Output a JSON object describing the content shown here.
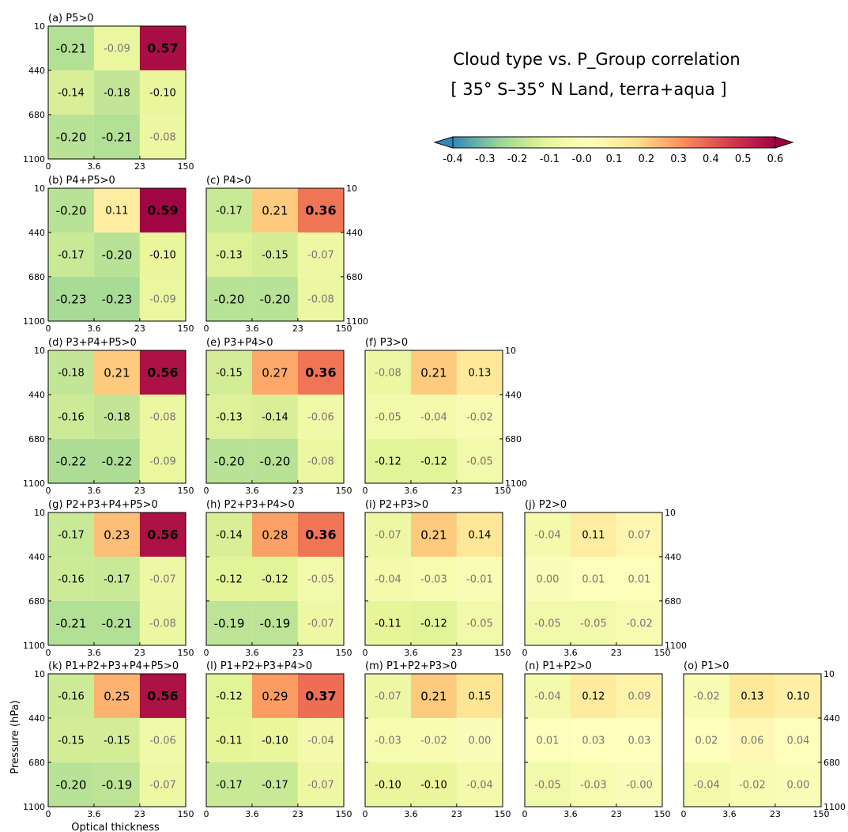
{
  "figure": {
    "title_line1": "Cloud type vs. P_Group correlation",
    "title_line2": "[ 35° S–35° N Land, terra+aqua ]",
    "xlabel": "Optical thickness",
    "ylabel": "Pressure (hPa)"
  },
  "colorbar": {
    "ticks": [
      "-0.4",
      "-0.3",
      "-0.2",
      "-0.1",
      "-0.0",
      "0.1",
      "0.2",
      "0.3",
      "0.4",
      "0.5",
      "0.6"
    ],
    "range": [
      -0.4,
      0.6
    ],
    "extend": "both",
    "colormap": "Spectral_r",
    "stops": [
      "#3288bd",
      "#99d594",
      "#e6f598",
      "#ffffbf",
      "#fee08b",
      "#fc8d59",
      "#d53e4f",
      "#9e0142"
    ]
  },
  "chart_data": {
    "type": "heatmap",
    "x_tick_labels": [
      "0",
      "3.6",
      "23",
      "150"
    ],
    "y_tick_labels": [
      "10",
      "440",
      "680",
      "1100"
    ],
    "x_bins": [
      "0–3.6",
      "3.6–23",
      "23–150"
    ],
    "y_bins": [
      "10–440",
      "440–680",
      "680–1100"
    ],
    "value_range": [
      -0.4,
      0.6
    ],
    "panels": [
      {
        "label": "(a) P5>0",
        "values": [
          [
            -0.21,
            -0.09,
            0.57
          ],
          [
            -0.14,
            -0.18,
            -0.1
          ],
          [
            -0.2,
            -0.21,
            -0.08
          ]
        ],
        "text": [
          [
            "-0.21",
            "-0.09",
            "0.57"
          ],
          [
            "-0.14",
            "-0.18",
            "-0.10"
          ],
          [
            "-0.20",
            "-0.21",
            "-0.08"
          ]
        ]
      },
      {
        "label": "(b) P4+P5>0",
        "values": [
          [
            -0.2,
            0.11,
            0.59
          ],
          [
            -0.17,
            -0.2,
            -0.1
          ],
          [
            -0.23,
            -0.23,
            -0.09
          ]
        ],
        "text": [
          [
            "-0.20",
            "0.11",
            "0.59"
          ],
          [
            "-0.17",
            "-0.20",
            "-0.10"
          ],
          [
            "-0.23",
            "-0.23",
            "-0.09"
          ]
        ]
      },
      {
        "label": "(c) P4>0",
        "values": [
          [
            -0.17,
            0.21,
            0.36
          ],
          [
            -0.13,
            -0.15,
            -0.07
          ],
          [
            -0.2,
            -0.2,
            -0.08
          ]
        ],
        "text": [
          [
            "-0.17",
            "0.21",
            "0.36"
          ],
          [
            "-0.13",
            "-0.15",
            "-0.07"
          ],
          [
            "-0.20",
            "-0.20",
            "-0.08"
          ]
        ]
      },
      {
        "label": "(d) P3+P4+P5>0",
        "values": [
          [
            -0.18,
            0.21,
            0.56
          ],
          [
            -0.16,
            -0.18,
            -0.08
          ],
          [
            -0.22,
            -0.22,
            -0.09
          ]
        ],
        "text": [
          [
            "-0.18",
            "0.21",
            "0.56"
          ],
          [
            "-0.16",
            "-0.18",
            "-0.08"
          ],
          [
            "-0.22",
            "-0.22",
            "-0.09"
          ]
        ]
      },
      {
        "label": "(e) P3+P4>0",
        "values": [
          [
            -0.15,
            0.27,
            0.36
          ],
          [
            -0.13,
            -0.14,
            -0.06
          ],
          [
            -0.2,
            -0.2,
            -0.08
          ]
        ],
        "text": [
          [
            "-0.15",
            "0.27",
            "0.36"
          ],
          [
            "-0.13",
            "-0.14",
            "-0.06"
          ],
          [
            "-0.20",
            "-0.20",
            "-0.08"
          ]
        ]
      },
      {
        "label": "(f) P3>0",
        "values": [
          [
            -0.08,
            0.21,
            0.13
          ],
          [
            -0.05,
            -0.04,
            -0.02
          ],
          [
            -0.12,
            -0.12,
            -0.05
          ]
        ],
        "text": [
          [
            "-0.08",
            "0.21",
            "0.13"
          ],
          [
            "-0.05",
            "-0.04",
            "-0.02"
          ],
          [
            "-0.12",
            "-0.12",
            "-0.05"
          ]
        ]
      },
      {
        "label": "(g) P2+P3+P4+P5>0",
        "values": [
          [
            -0.17,
            0.23,
            0.56
          ],
          [
            -0.16,
            -0.17,
            -0.07
          ],
          [
            -0.21,
            -0.21,
            -0.08
          ]
        ],
        "text": [
          [
            "-0.17",
            "0.23",
            "0.56"
          ],
          [
            "-0.16",
            "-0.17",
            "-0.07"
          ],
          [
            "-0.21",
            "-0.21",
            "-0.08"
          ]
        ]
      },
      {
        "label": "(h) P2+P3+P4>0",
        "values": [
          [
            -0.14,
            0.28,
            0.36
          ],
          [
            -0.12,
            -0.12,
            -0.05
          ],
          [
            -0.19,
            -0.19,
            -0.07
          ]
        ],
        "text": [
          [
            "-0.14",
            "0.28",
            "0.36"
          ],
          [
            "-0.12",
            "-0.12",
            "-0.05"
          ],
          [
            "-0.19",
            "-0.19",
            "-0.07"
          ]
        ]
      },
      {
        "label": "(i) P2+P3>0",
        "values": [
          [
            -0.07,
            0.21,
            0.14
          ],
          [
            -0.04,
            -0.03,
            -0.01
          ],
          [
            -0.11,
            -0.12,
            -0.05
          ]
        ],
        "text": [
          [
            "-0.07",
            "0.21",
            "0.14"
          ],
          [
            "-0.04",
            "-0.03",
            "-0.01"
          ],
          [
            "-0.11",
            "-0.12",
            "-0.05"
          ]
        ]
      },
      {
        "label": "(j) P2>0",
        "values": [
          [
            -0.04,
            0.11,
            0.07
          ],
          [
            0.0,
            0.01,
            0.01
          ],
          [
            -0.05,
            -0.05,
            -0.02
          ]
        ],
        "text": [
          [
            "-0.04",
            "0.11",
            "0.07"
          ],
          [
            "0.00",
            "0.01",
            "0.01"
          ],
          [
            "-0.05",
            "-0.05",
            "-0.02"
          ]
        ]
      },
      {
        "label": "(k) P1+P2+P3+P4+P5>0",
        "values": [
          [
            -0.16,
            0.25,
            0.56
          ],
          [
            -0.15,
            -0.15,
            -0.06
          ],
          [
            -0.2,
            -0.19,
            -0.07
          ]
        ],
        "text": [
          [
            "-0.16",
            "0.25",
            "0.56"
          ],
          [
            "-0.15",
            "-0.15",
            "-0.06"
          ],
          [
            "-0.20",
            "-0.19",
            "-0.07"
          ]
        ]
      },
      {
        "label": "(l) P1+P2+P3+P4>0",
        "values": [
          [
            -0.12,
            0.29,
            0.37
          ],
          [
            -0.11,
            -0.1,
            -0.04
          ],
          [
            -0.17,
            -0.17,
            -0.07
          ]
        ],
        "text": [
          [
            "-0.12",
            "0.29",
            "0.37"
          ],
          [
            "-0.11",
            "-0.10",
            "-0.04"
          ],
          [
            "-0.17",
            "-0.17",
            "-0.07"
          ]
        ]
      },
      {
        "label": "(m) P1+P2+P3>0",
        "values": [
          [
            -0.07,
            0.21,
            0.15
          ],
          [
            -0.03,
            -0.02,
            0.0
          ],
          [
            -0.1,
            -0.1,
            -0.04
          ]
        ],
        "text": [
          [
            "-0.07",
            "0.21",
            "0.15"
          ],
          [
            "-0.03",
            "-0.02",
            "0.00"
          ],
          [
            "-0.10",
            "-0.10",
            "-0.04"
          ]
        ]
      },
      {
        "label": "(n) P1+P2>0",
        "values": [
          [
            -0.04,
            0.12,
            0.09
          ],
          [
            0.01,
            0.03,
            0.03
          ],
          [
            -0.05,
            -0.03,
            -0.0
          ]
        ],
        "text": [
          [
            "-0.04",
            "0.12",
            "0.09"
          ],
          [
            "0.01",
            "0.03",
            "0.03"
          ],
          [
            "-0.05",
            "-0.03",
            "-0.00"
          ]
        ]
      },
      {
        "label": "(o) P1>0",
        "values": [
          [
            -0.02,
            0.13,
            0.1
          ],
          [
            0.02,
            0.06,
            0.04
          ],
          [
            -0.04,
            -0.02,
            0.0
          ]
        ],
        "text": [
          [
            "-0.02",
            "0.13",
            "0.10"
          ],
          [
            "0.02",
            "0.06",
            "0.04"
          ],
          [
            "-0.04",
            "-0.02",
            "0.00"
          ]
        ]
      }
    ]
  }
}
